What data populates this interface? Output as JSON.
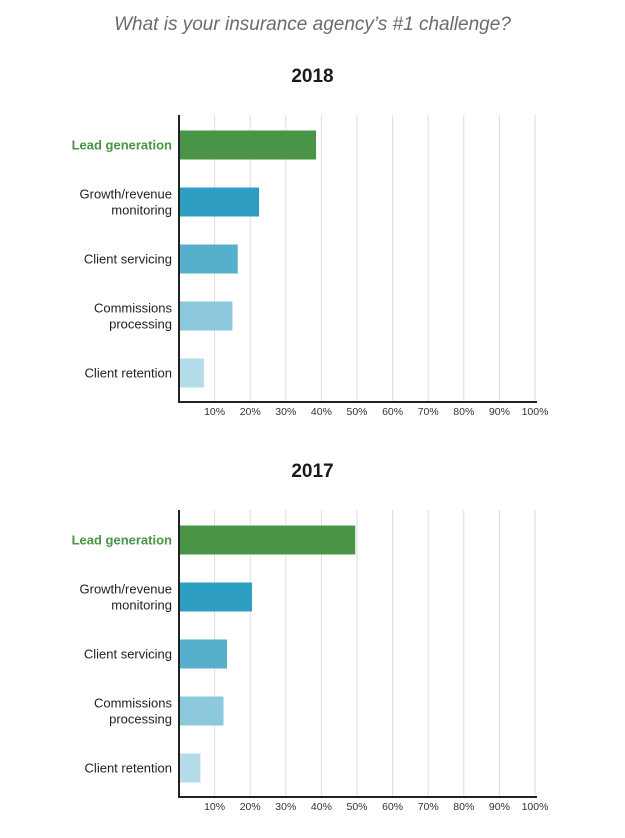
{
  "question": "What is your insurance agency’s #1 challenge?",
  "colors": {
    "lead_generation": "#4a9447",
    "growth_revenue": "#2e9fc2",
    "client_servicing": "#56b0cb",
    "commissions": "#8cc9dc",
    "client_retention": "#b3dce8",
    "gridline": "#dddddd",
    "axis": "#222222",
    "highlight_label": "#4a9447"
  },
  "chart_data": [
    {
      "type": "bar",
      "orientation": "horizontal",
      "title": "2018",
      "categories": [
        [
          "Lead generation"
        ],
        [
          "Growth/revenue",
          "monitoring"
        ],
        [
          "Client servicing"
        ],
        [
          "Commissions",
          "processing"
        ],
        [
          "Client retention"
        ]
      ],
      "values": [
        38.5,
        22.5,
        16.5,
        15,
        7
      ],
      "highlighted_category": 0,
      "xlim": [
        0,
        100
      ],
      "x_ticks": [
        "10%",
        "20%",
        "30%",
        "40%",
        "50%",
        "60%",
        "70%",
        "80%",
        "90%",
        "100%"
      ],
      "grid": true
    },
    {
      "type": "bar",
      "orientation": "horizontal",
      "title": "2017",
      "categories": [
        [
          "Lead generation"
        ],
        [
          "Growth/revenue",
          "monitoring"
        ],
        [
          "Client servicing"
        ],
        [
          "Commissions",
          "processing"
        ],
        [
          "Client retention"
        ]
      ],
      "values": [
        49.5,
        20.5,
        13.5,
        12.5,
        6
      ],
      "highlighted_category": 0,
      "xlim": [
        0,
        100
      ],
      "x_ticks": [
        "10%",
        "20%",
        "30%",
        "40%",
        "50%",
        "60%",
        "70%",
        "80%",
        "90%",
        "100%"
      ],
      "grid": true
    }
  ]
}
